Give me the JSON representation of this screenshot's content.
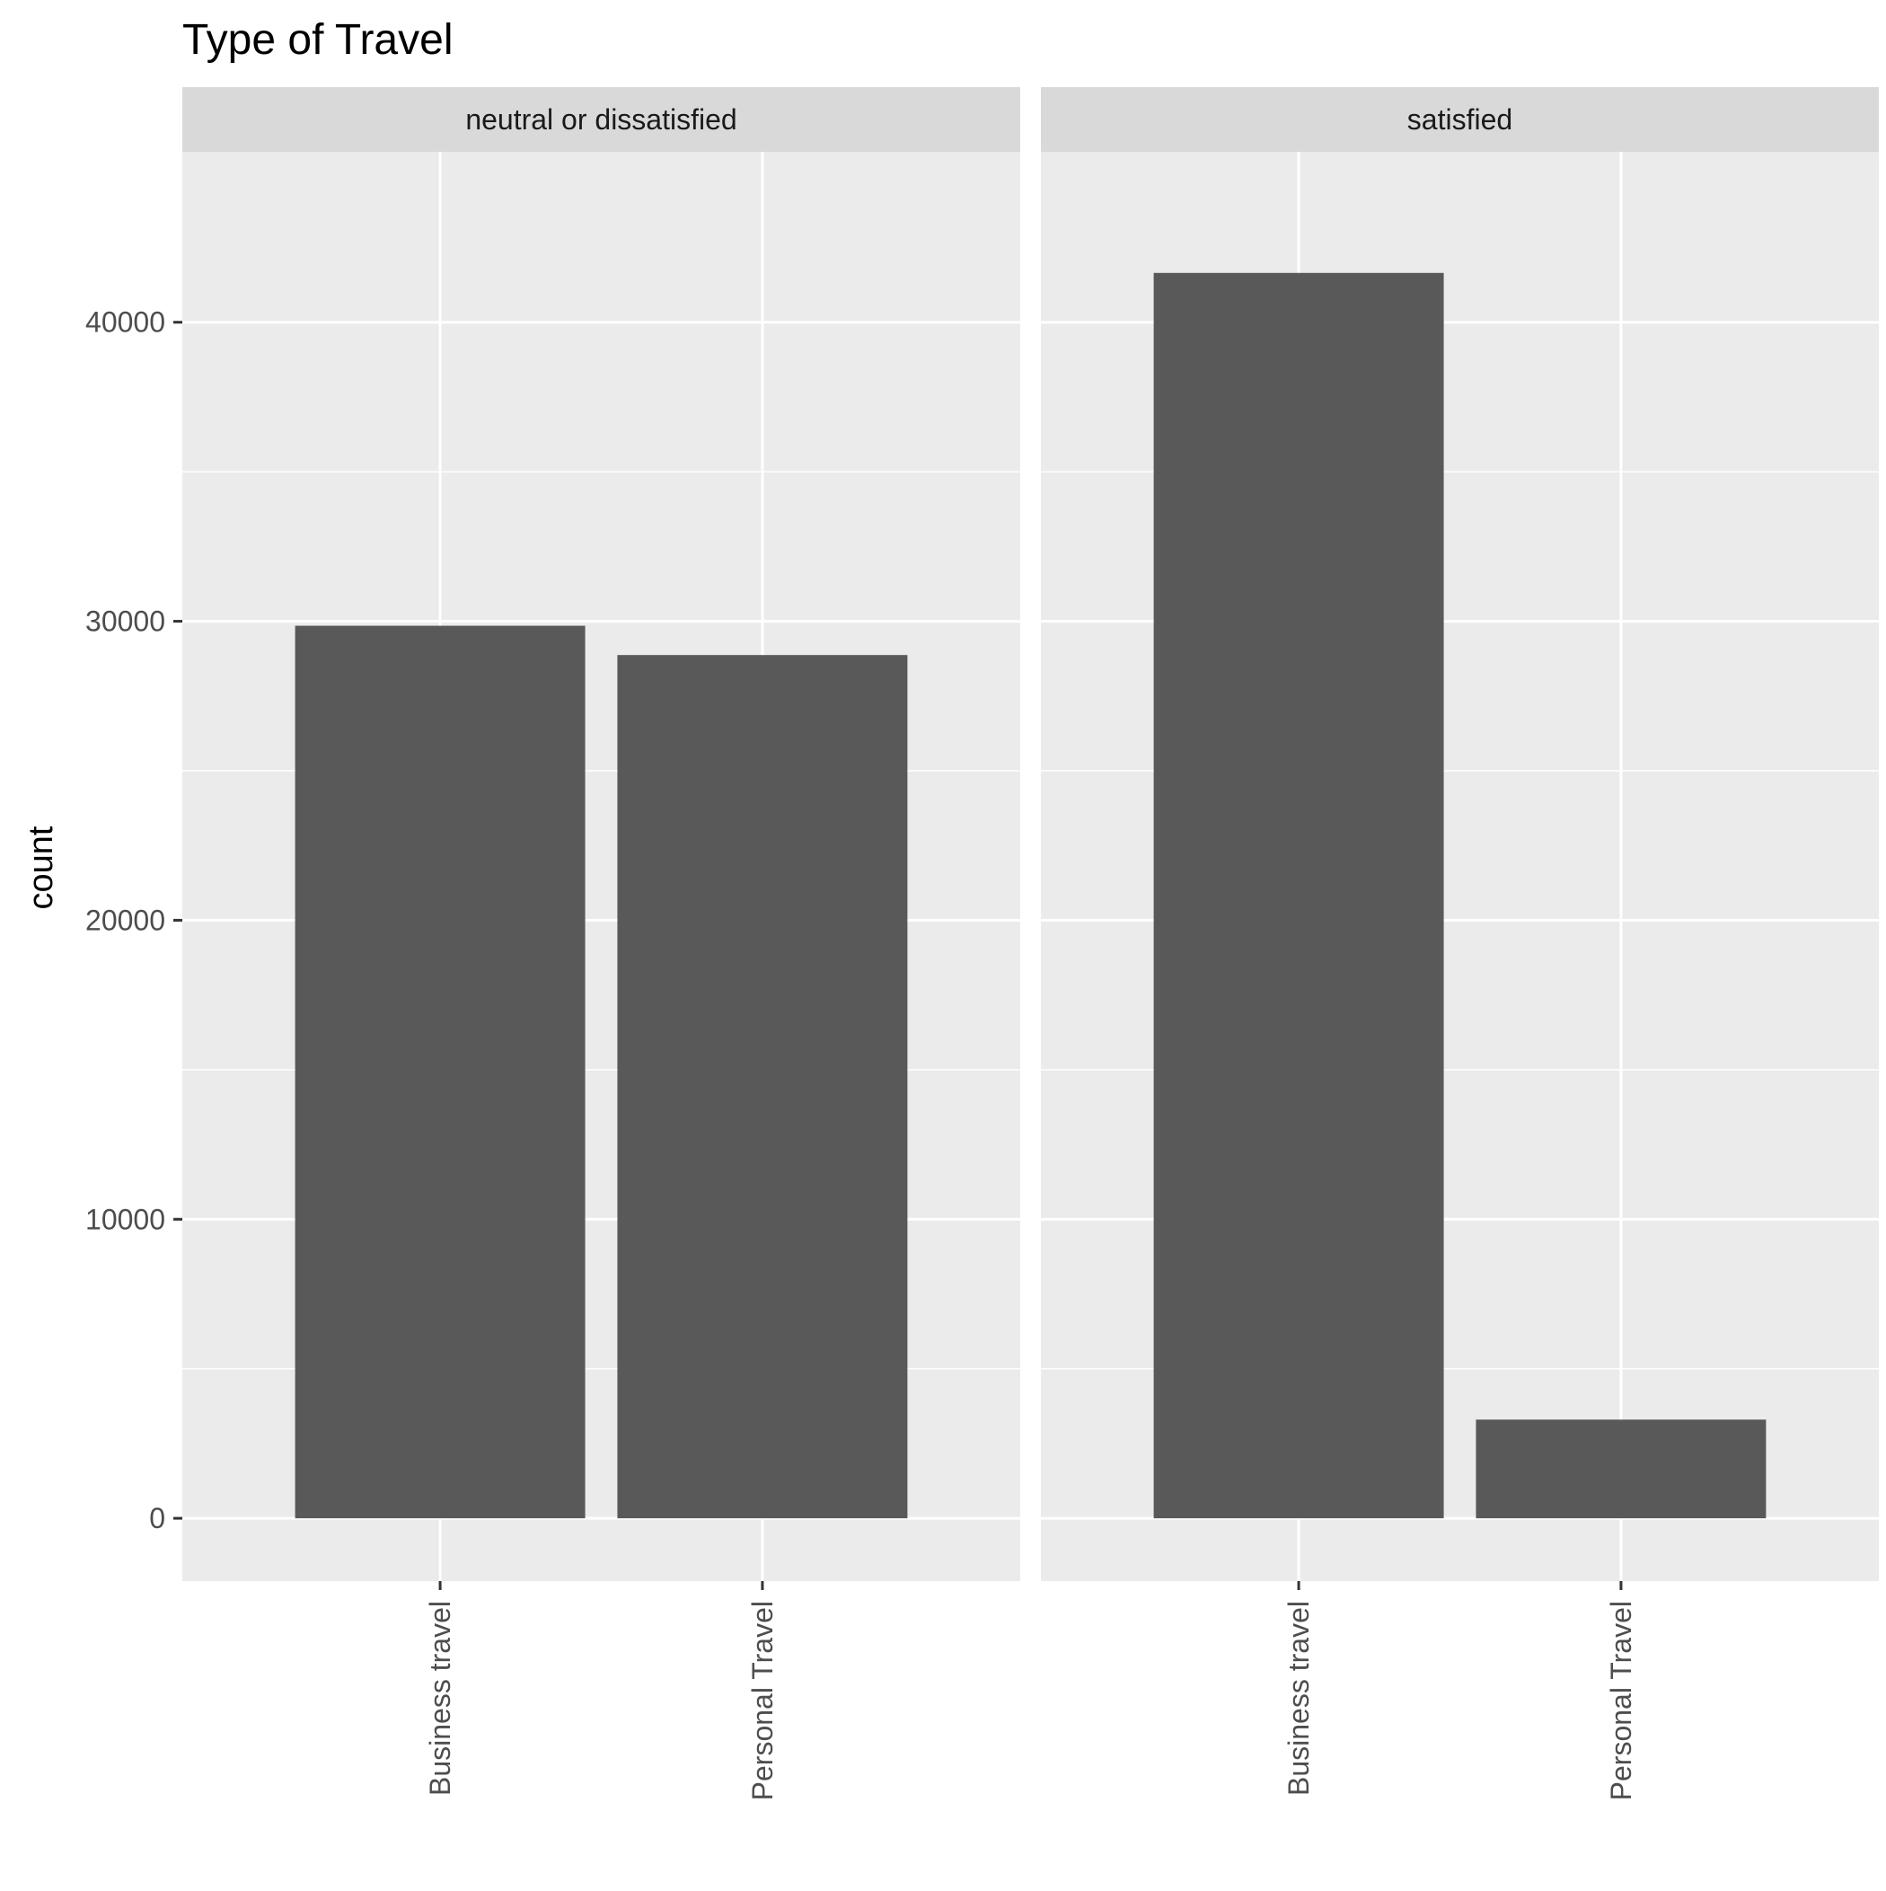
{
  "colors": {
    "panel_background": "#ebebeb",
    "strip_background": "#d9d9d9",
    "grid": "#ffffff",
    "bar_fill": "#595959",
    "axis_text": "#4d4d4d",
    "title_text": "#000000",
    "strip_text": "#1a1a1a"
  },
  "chart_data": {
    "type": "bar",
    "title": "Type of Travel",
    "xlabel": "",
    "ylabel": "count",
    "ylim": [
      -2100,
      45700
    ],
    "y_ticks": [
      0,
      10000,
      20000,
      30000,
      40000
    ],
    "y_minor_ticks": [
      5000,
      15000,
      25000,
      35000
    ],
    "y_tick_labels": [
      "0",
      "10000",
      "20000",
      "30000",
      "40000"
    ],
    "grid": true,
    "legend": "none",
    "facet_by": "satisfaction",
    "categories": [
      "Business travel",
      "Personal Travel"
    ],
    "facets": [
      {
        "label": "neutral or dissatisfied",
        "values": [
          29850,
          28870
        ]
      },
      {
        "label": "satisfied",
        "values": [
          41650,
          3300
        ]
      }
    ]
  }
}
